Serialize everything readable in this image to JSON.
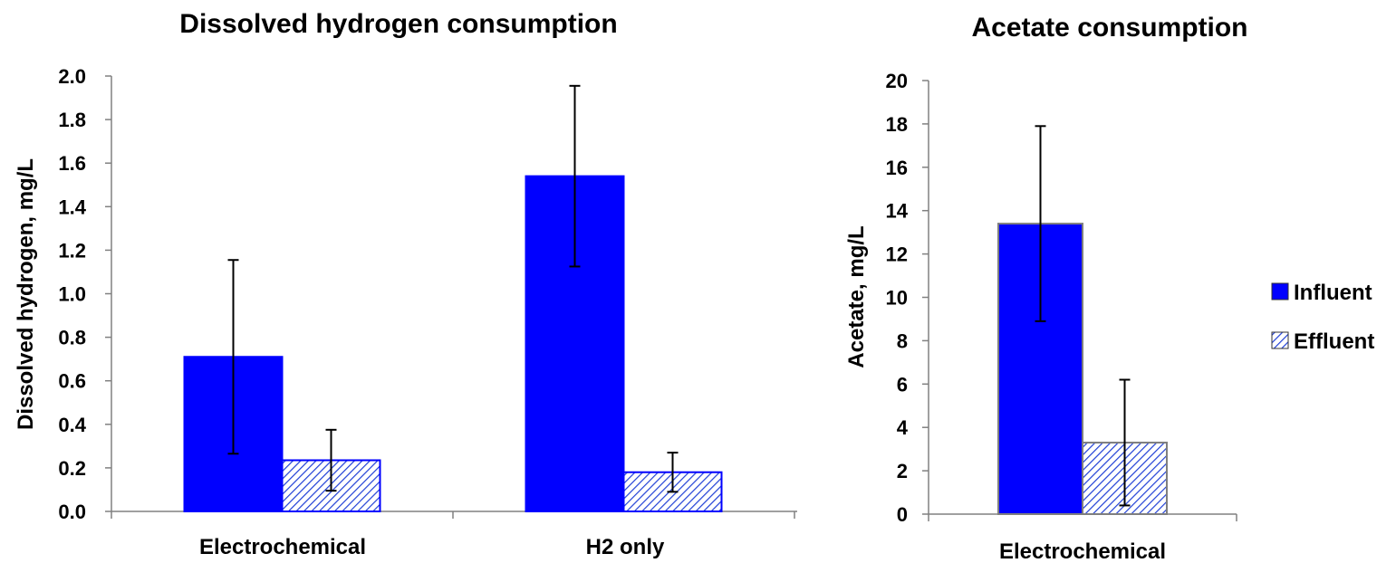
{
  "chart_data": [
    {
      "type": "bar",
      "title": "Dissolved hydrogen consumption",
      "xlabel": "",
      "ylabel": "Dissolved hydrogen, mg/L",
      "categories": [
        "Electrochemical",
        "H2 only"
      ],
      "ylim": [
        0,
        2.0
      ],
      "yticks": [
        "0.0",
        "0.2",
        "0.4",
        "0.6",
        "0.8",
        "1.0",
        "1.2",
        "1.4",
        "1.6",
        "1.8",
        "2.0"
      ],
      "grid": false,
      "series": [
        {
          "name": "Influent",
          "values": [
            0.71,
            1.54
          ],
          "errors": [
            0.445,
            0.415
          ]
        },
        {
          "name": "Effluent",
          "values": [
            0.235,
            0.18
          ],
          "errors": [
            0.14,
            0.09
          ]
        }
      ]
    },
    {
      "type": "bar",
      "title": "Acetate consumption",
      "xlabel": "",
      "ylabel": "Acetate, mg/L",
      "categories": [
        "Electrochemical"
      ],
      "ylim": [
        0,
        20
      ],
      "yticks": [
        "0",
        "2",
        "4",
        "6",
        "8",
        "10",
        "12",
        "14",
        "16",
        "18",
        "20"
      ],
      "grid": false,
      "series": [
        {
          "name": "Influent",
          "values": [
            13.4
          ],
          "errors": [
            4.5
          ]
        },
        {
          "name": "Effluent",
          "values": [
            3.3
          ],
          "errors": [
            2.9
          ]
        }
      ]
    }
  ],
  "legend": {
    "position": "right",
    "items": [
      {
        "label": "Influent",
        "style": "solid"
      },
      {
        "label": "Effluent",
        "style": "hatched"
      }
    ]
  },
  "colors": {
    "influent": "#0000ff",
    "effluent_hatch": "#1f3fd6",
    "axis": "#808080",
    "acetate_bar_border": "#7f7f7f"
  }
}
